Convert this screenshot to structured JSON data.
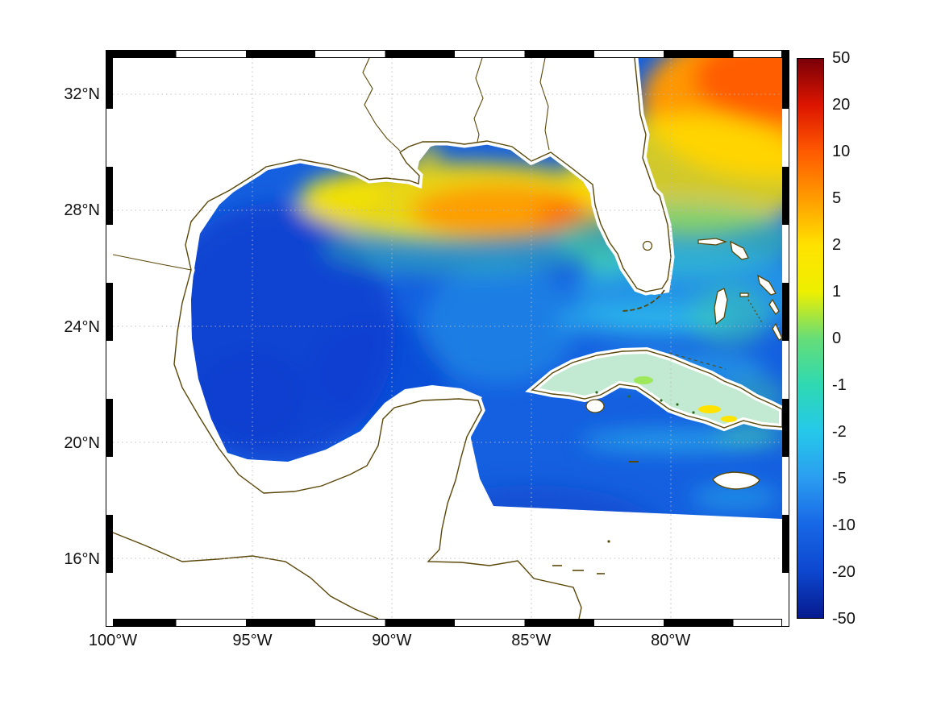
{
  "figure": {
    "background": "#ffffff"
  },
  "palette": {
    "coastline": "#5a4708",
    "grid": "#b8b8b8",
    "ocean-base": "#1560e0",
    "deep-blue": "#0a3ecf",
    "carib-blue": "#0c43cc",
    "cyan": "#2fc3ee",
    "teal": "#47d6a0",
    "greenyellow": "#9ae84f",
    "yellow": "#ffe300",
    "orange": "#ff9800",
    "orange-red": "#ff5200",
    "cuba-fill": "#c2ead2",
    "land-fill": "#ffffff"
  },
  "chart_data": {
    "type": "heatmap",
    "title": "",
    "description": "Gridded anomaly field over the Gulf of Mexico, Straits of Florida, northwest Caribbean and western North Atlantic, drawn on a latitude/longitude map with coastlines, dotted graticule, a black-and-white checkered map frame and a nonlinear diverging colorbar (white = land / no data).",
    "x_ticks": [
      {
        "label": "100°W",
        "deg_west": 100
      },
      {
        "label": "95°W",
        "deg_west": 95
      },
      {
        "label": "90°W",
        "deg_west": 90
      },
      {
        "label": "85°W",
        "deg_west": 85
      },
      {
        "label": "80°W",
        "deg_west": 80
      }
    ],
    "y_ticks": [
      {
        "label": "16°N",
        "deg_north": 16
      },
      {
        "label": "20°N",
        "deg_north": 20
      },
      {
        "label": "24°N",
        "deg_north": 24
      },
      {
        "label": "28°N",
        "deg_north": 28
      },
      {
        "label": "32°N",
        "deg_north": 32
      }
    ],
    "lon_range_deg_west": [
      100,
      76
    ],
    "lat_range_deg_north": [
      33.25,
      13.95
    ],
    "grid": "dotted",
    "legend_position": "right",
    "colorbar": {
      "position": "right",
      "ticks": [
        {
          "label": "50",
          "color": "#7a0008"
        },
        {
          "label": "20",
          "color": "#dd1500"
        },
        {
          "label": "10",
          "color": "#ff5a00"
        },
        {
          "label": "5",
          "color": "#ff9c00"
        },
        {
          "label": "2",
          "color": "#ffe200"
        },
        {
          "label": "1",
          "color": "#eef000"
        },
        {
          "label": "0",
          "color": "#66dd77"
        },
        {
          "label": "-1",
          "color": "#2ed9b2"
        },
        {
          "label": "-2",
          "color": "#25c8ea"
        },
        {
          "label": "-5",
          "color": "#2b9df0"
        },
        {
          "label": "-10",
          "color": "#1767e6"
        },
        {
          "label": "-20",
          "color": "#0d47cf"
        },
        {
          "label": "-50",
          "color": "#061a8e"
        }
      ]
    },
    "field_summary": [
      {
        "region": "western and central Gulf of Mexico",
        "approx_value": "-10 to -5"
      },
      {
        "region": "northern Gulf shelf, Louisiana to Florida Big Bend",
        "approx_value": "+2 to +10"
      },
      {
        "region": "Atlantic off Georgia / northeast corner of map",
        "approx_value": "+5 to +20"
      },
      {
        "region": "Straits of Florida and Yucatan Channel",
        "approx_value": "-5 to -2"
      },
      {
        "region": "northwest Caribbean south of Cuba",
        "approx_value": "-10 to -2, cyan filaments"
      },
      {
        "region": "coastal patches around Cuba",
        "approx_value": "0 to +2"
      },
      {
        "region": "Bay of Campeche and Caribbean south of ~17.5°N",
        "approx_value": "no data (white)"
      }
    ]
  }
}
